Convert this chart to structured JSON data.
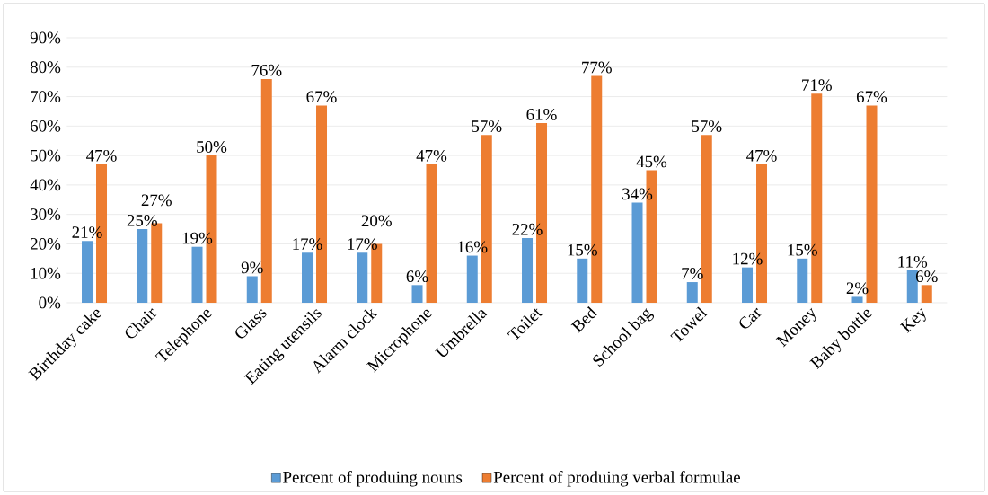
{
  "chart_data": {
    "type": "bar",
    "categories": [
      "Birthday cake",
      "Chair",
      "Telephone",
      "Glass",
      "Eating utensils",
      "Alarm clock",
      "Microphone",
      "Umbrella",
      "Toilet",
      "Bed",
      "School bag",
      "Towel",
      "Car",
      "Money",
      "Baby bottle",
      "Key"
    ],
    "series": [
      {
        "name": "Percent of produing nouns",
        "color": "#5b9bd5",
        "values": [
          21,
          25,
          19,
          9,
          17,
          17,
          6,
          16,
          22,
          15,
          34,
          7,
          12,
          15,
          2,
          11
        ],
        "value_labels": [
          "21%",
          "25%",
          "19%",
          "9%",
          "17%",
          "17%",
          "6%",
          "16%",
          "22%",
          "15%",
          "34%",
          "7%",
          "12%",
          "15%",
          "2%",
          "11%"
        ]
      },
      {
        "name": "Percent of produing verbal formulae",
        "color": "#ed7d31",
        "values": [
          47,
          27,
          50,
          76,
          67,
          20,
          47,
          57,
          61,
          77,
          45,
          57,
          47,
          71,
          67,
          6
        ],
        "value_labels": [
          "47%",
          "27%",
          "50%",
          "76%",
          "67%",
          "20%",
          "47%",
          "57%",
          "61%",
          "77%",
          "45%",
          "57%",
          "47%",
          "71%",
          "67%",
          "6%"
        ]
      }
    ],
    "ylim": [
      0,
      90
    ],
    "yticks": [
      {
        "value": 0,
        "label": "0%"
      },
      {
        "value": 10,
        "label": "10%"
      },
      {
        "value": 20,
        "label": "20%"
      },
      {
        "value": 30,
        "label": "30%"
      },
      {
        "value": 40,
        "label": "40%"
      },
      {
        "value": 50,
        "label": "50%"
      },
      {
        "value": 60,
        "label": "60%"
      },
      {
        "value": 70,
        "label": "70%"
      },
      {
        "value": 80,
        "label": "80%"
      },
      {
        "value": 90,
        "label": "90%"
      }
    ],
    "grid": "y",
    "legend": "bottom"
  }
}
